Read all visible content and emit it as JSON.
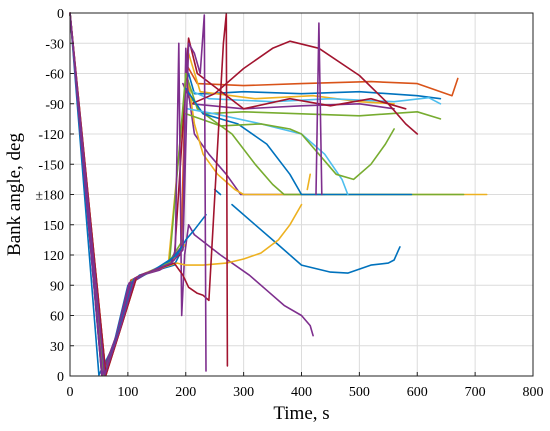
{
  "chart_data": {
    "type": "line",
    "title": "",
    "xlabel": "Time, s",
    "ylabel": "Bank angle, deg",
    "xlim": [
      0,
      800
    ],
    "x_ticks": [
      0,
      100,
      200,
      300,
      400,
      500,
      600,
      700,
      800
    ],
    "x_tick_labels": [
      "0",
      "100",
      "200",
      "300",
      "400",
      "500",
      "600",
      "700",
      "800"
    ],
    "y_axis_note": "wrapped bank angle axis: top 0 to -180 (negative), then +180 down to 0 at bottom",
    "y_ticks": [
      0,
      -30,
      -60,
      -90,
      -120,
      -150,
      -180,
      150,
      120,
      90,
      60,
      30,
      0
    ],
    "y_tick_labels": [
      "0",
      "-30",
      "-60",
      "-90",
      "-120",
      "-150",
      "±180",
      "150",
      "120",
      "90",
      "60",
      "30",
      "0"
    ],
    "grid": true,
    "legend": "none",
    "series": [
      {
        "color": "#0072BD",
        "values": [
          [
            0,
            0
          ],
          [
            50,
            1
          ],
          [
            75,
            30
          ],
          [
            100,
            90
          ],
          [
            120,
            100
          ],
          [
            150,
            105
          ],
          [
            180,
            110
          ],
          [
            198,
            130
          ],
          [
            205,
            -60
          ],
          [
            215,
            -80
          ],
          [
            240,
            -80
          ],
          [
            300,
            -78
          ],
          [
            400,
            -80
          ],
          [
            500,
            -78
          ],
          [
            600,
            -82
          ],
          [
            640,
            -85
          ]
        ]
      },
      {
        "color": "#D95319",
        "values": [
          [
            0,
            0
          ],
          [
            55,
            1
          ],
          [
            80,
            40
          ],
          [
            105,
            95
          ],
          [
            130,
            102
          ],
          [
            165,
            110
          ],
          [
            192,
            125
          ],
          [
            200,
            -50
          ],
          [
            220,
            -70
          ],
          [
            300,
            -72
          ],
          [
            400,
            -70
          ],
          [
            520,
            -68
          ],
          [
            600,
            -70
          ],
          [
            660,
            -82
          ],
          [
            670,
            -65
          ]
        ]
      },
      {
        "color": "#EDB120",
        "values": [
          [
            0,
            0
          ],
          [
            60,
            1
          ],
          [
            85,
            45
          ],
          [
            110,
            95
          ],
          [
            140,
            104
          ],
          [
            170,
            112
          ],
          [
            205,
            -40
          ],
          [
            225,
            -78
          ],
          [
            320,
            -85
          ],
          [
            420,
            -82
          ],
          [
            500,
            -88
          ],
          [
            560,
            -90
          ]
        ]
      },
      {
        "color": "#7E2F8E",
        "values": [
          [
            0,
            0
          ],
          [
            55,
            1
          ],
          [
            78,
            35
          ],
          [
            102,
            92
          ],
          [
            125,
            101
          ],
          [
            160,
            108
          ],
          [
            185,
            122
          ],
          [
            195,
            -70
          ],
          [
            210,
            -90
          ],
          [
            300,
            -95
          ],
          [
            400,
            -92
          ],
          [
            500,
            -90
          ],
          [
            560,
            -95
          ]
        ]
      },
      {
        "color": "#77AC30",
        "values": [
          [
            0,
            0
          ],
          [
            58,
            1
          ],
          [
            82,
            42
          ],
          [
            108,
            95
          ],
          [
            135,
            103
          ],
          [
            170,
            112
          ],
          [
            195,
            135
          ],
          [
            203,
            -80
          ],
          [
            230,
            -100
          ],
          [
            300,
            -98
          ],
          [
            400,
            -100
          ],
          [
            500,
            -102
          ],
          [
            600,
            -98
          ],
          [
            640,
            -105
          ]
        ]
      },
      {
        "color": "#4DBEEE",
        "values": [
          [
            0,
            0
          ],
          [
            57,
            1
          ],
          [
            80,
            40
          ],
          [
            106,
            93
          ],
          [
            135,
            103
          ],
          [
            175,
            114
          ],
          [
            200,
            -75
          ],
          [
            240,
            -85
          ],
          [
            350,
            -88
          ],
          [
            450,
            -85
          ],
          [
            560,
            -88
          ],
          [
            620,
            -84
          ],
          [
            640,
            -90
          ]
        ]
      },
      {
        "color": "#A2142F",
        "values": [
          [
            0,
            0
          ],
          [
            60,
            1
          ],
          [
            86,
            46
          ],
          [
            112,
            97
          ],
          [
            140,
            104
          ],
          [
            180,
            115
          ],
          [
            205,
            -25
          ],
          [
            220,
            -60
          ],
          [
            300,
            -95
          ],
          [
            380,
            -85
          ],
          [
            450,
            -92
          ],
          [
            520,
            -85
          ],
          [
            580,
            -95
          ]
        ]
      },
      {
        "color": "#A2142F",
        "values": [
          [
            0,
            0
          ],
          [
            62,
            1
          ],
          [
            88,
            48
          ],
          [
            115,
            98
          ],
          [
            150,
            106
          ],
          [
            190,
            120
          ],
          [
            210,
            -90
          ],
          [
            250,
            -80
          ],
          [
            300,
            -55
          ],
          [
            350,
            -35
          ],
          [
            380,
            -28
          ],
          [
            430,
            -35
          ],
          [
            500,
            -62
          ],
          [
            550,
            -90
          ],
          [
            580,
            -110
          ],
          [
            600,
            -120
          ]
        ]
      },
      {
        "color": "#7E2F8E",
        "values": [
          [
            0,
            0
          ],
          [
            55,
            1
          ],
          [
            80,
            40
          ],
          [
            105,
            92
          ],
          [
            130,
            101
          ],
          [
            170,
            112
          ],
          [
            195,
            130
          ],
          [
            200,
            -35
          ],
          [
            205,
            -80
          ],
          [
            215,
            -120
          ],
          [
            240,
            -140
          ],
          [
            270,
            -160
          ],
          [
            295,
            -180
          ],
          [
            440,
            -180
          ]
        ]
      },
      {
        "color": "#EDB120",
        "values": [
          [
            0,
            0
          ],
          [
            58,
            1
          ],
          [
            82,
            42
          ],
          [
            108,
            94
          ],
          [
            138,
            104
          ],
          [
            175,
            112
          ],
          [
            198,
            130
          ],
          [
            205,
            -70
          ],
          [
            215,
            -110
          ],
          [
            230,
            -140
          ],
          [
            255,
            -160
          ],
          [
            285,
            -175
          ],
          [
            300,
            -180
          ],
          [
            720,
            -180
          ]
        ]
      },
      {
        "color": "#77AC30",
        "values": [
          [
            0,
            0
          ],
          [
            59,
            1
          ],
          [
            84,
            44
          ],
          [
            110,
            95
          ],
          [
            140,
            104
          ],
          [
            172,
            113
          ],
          [
            200,
            -60
          ],
          [
            220,
            -95
          ],
          [
            280,
            -120
          ],
          [
            320,
            -150
          ],
          [
            350,
            -170
          ],
          [
            370,
            -180
          ],
          [
            680,
            -180
          ]
        ]
      },
      {
        "color": "#0072BD",
        "values": [
          [
            0,
            0
          ],
          [
            57,
            1
          ],
          [
            80,
            40
          ],
          [
            106,
            93
          ],
          [
            135,
            102
          ],
          [
            165,
            110
          ],
          [
            190,
            125
          ],
          [
            200,
            -75
          ],
          [
            230,
            -100
          ],
          [
            290,
            -110
          ],
          [
            340,
            -130
          ],
          [
            380,
            -160
          ],
          [
            400,
            -180
          ],
          [
            590,
            -180
          ]
        ]
      },
      {
        "color": "#4DBEEE",
        "values": [
          [
            0,
            0
          ],
          [
            60,
            1
          ],
          [
            85,
            45
          ],
          [
            110,
            96
          ],
          [
            140,
            104
          ],
          [
            175,
            113
          ],
          [
            203,
            -95
          ],
          [
            250,
            -100
          ],
          [
            330,
            -110
          ],
          [
            400,
            -120
          ],
          [
            440,
            -140
          ],
          [
            470,
            -165
          ],
          [
            480,
            -180
          ]
        ]
      },
      {
        "color": "#77AC30",
        "values": [
          [
            0,
            0
          ],
          [
            58,
            1
          ],
          [
            82,
            42
          ],
          [
            108,
            94
          ],
          [
            140,
            104
          ],
          [
            175,
            113
          ],
          [
            200,
            -100
          ],
          [
            260,
            -112
          ],
          [
            330,
            -110
          ],
          [
            380,
            -115
          ],
          [
            400,
            -120
          ],
          [
            430,
            -140
          ],
          [
            460,
            -160
          ],
          [
            490,
            -165
          ],
          [
            520,
            -150
          ],
          [
            545,
            -130
          ],
          [
            560,
            -115
          ]
        ]
      },
      {
        "color": "#7E2F8E",
        "values": [
          [
            0,
            0
          ],
          [
            56,
            1
          ],
          [
            80,
            40
          ],
          [
            105,
            92
          ],
          [
            130,
            101
          ],
          [
            155,
            105
          ],
          [
            175,
            112
          ],
          [
            182,
            125
          ],
          [
            188,
            -30
          ],
          [
            193,
            60
          ],
          [
            198,
            120
          ],
          [
            205,
            150
          ],
          [
            215,
            140
          ],
          [
            260,
            120
          ],
          [
            310,
            100
          ],
          [
            340,
            85
          ],
          [
            370,
            70
          ],
          [
            400,
            60
          ],
          [
            415,
            50
          ],
          [
            420,
            40
          ],
          [
            425,
            -180
          ],
          [
            430,
            -10
          ],
          [
            435,
            -180
          ]
        ]
      },
      {
        "color": "#0072BD",
        "values": [
          [
            0,
            0
          ],
          [
            60,
            1
          ],
          [
            84,
            44
          ],
          [
            110,
            96
          ],
          [
            145,
            105
          ],
          [
            185,
            120
          ],
          [
            200,
            135
          ],
          [
            215,
            145
          ],
          [
            235,
            160
          ],
          [
            250,
            -175
          ],
          [
            260,
            -180
          ],
          [
            280,
            170
          ],
          [
            320,
            150
          ],
          [
            360,
            130
          ],
          [
            400,
            110
          ],
          [
            450,
            103
          ],
          [
            480,
            102
          ],
          [
            520,
            110
          ],
          [
            550,
            112
          ],
          [
            560,
            115
          ],
          [
            570,
            128
          ]
        ]
      },
      {
        "color": "#EDB120",
        "values": [
          [
            0,
            0
          ],
          [
            62,
            1
          ],
          [
            88,
            48
          ],
          [
            115,
            98
          ],
          [
            150,
            106
          ],
          [
            185,
            112
          ],
          [
            200,
            110
          ],
          [
            230,
            110
          ],
          [
            270,
            112
          ],
          [
            300,
            116
          ],
          [
            330,
            122
          ],
          [
            360,
            135
          ],
          [
            380,
            150
          ],
          [
            400,
            170
          ],
          [
            410,
            -175
          ],
          [
            415,
            -160
          ]
        ]
      },
      {
        "color": "#A2142F",
        "values": [
          [
            0,
            0
          ],
          [
            62,
            1
          ],
          [
            88,
            48
          ],
          [
            115,
            98
          ],
          [
            145,
            105
          ],
          [
            180,
            112
          ],
          [
            195,
            100
          ],
          [
            205,
            88
          ],
          [
            220,
            82
          ],
          [
            230,
            80
          ],
          [
            240,
            75
          ],
          [
            265,
            -30
          ],
          [
            270,
            -1
          ],
          [
            272,
            10
          ]
        ]
      },
      {
        "color": "#7E2F8E",
        "values": [
          [
            0,
            0
          ],
          [
            60,
            1
          ],
          [
            86,
            46
          ],
          [
            112,
            97
          ],
          [
            145,
            105
          ],
          [
            175,
            112
          ],
          [
            195,
            125
          ],
          [
            205,
            -30
          ],
          [
            215,
            -40
          ],
          [
            225,
            -60
          ],
          [
            232,
            -2
          ],
          [
            235,
            5
          ]
        ]
      }
    ]
  }
}
